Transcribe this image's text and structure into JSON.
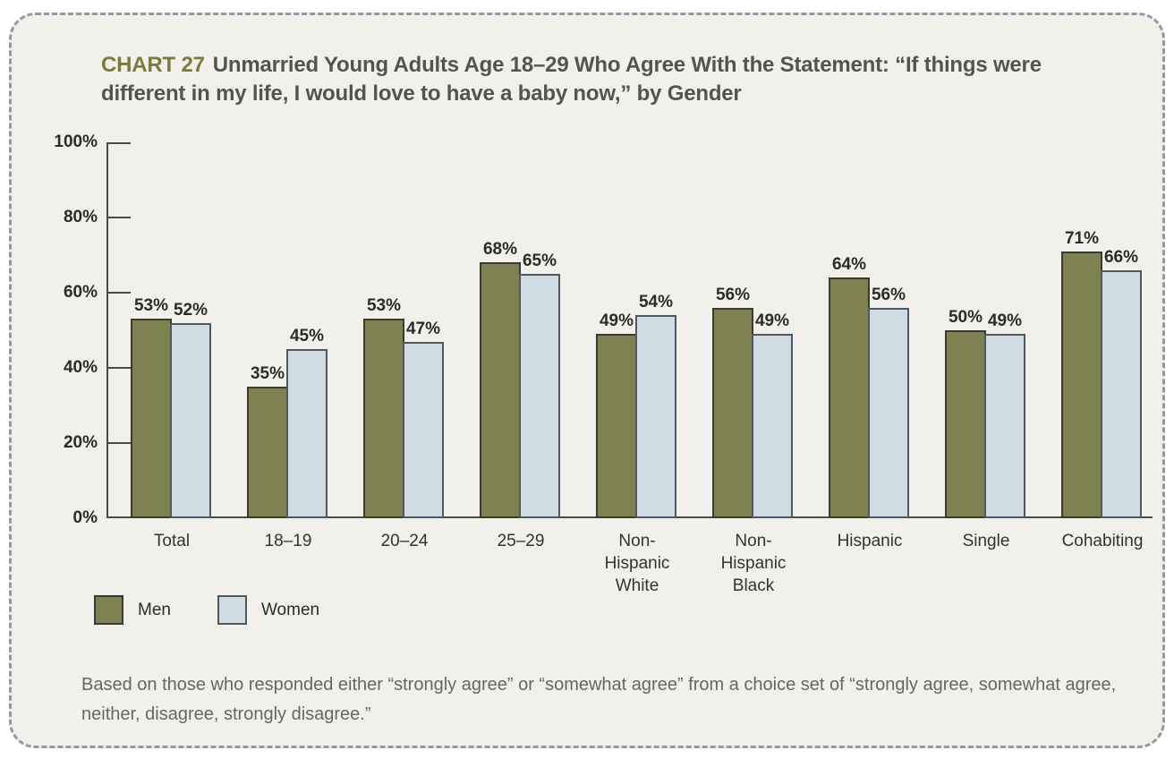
{
  "title": {
    "label": "CHART 27",
    "text": "Unmarried Young Adults Age 18–29 Who Agree With the Statement: “If things were different in my life, I would love to have a baby now,” by Gender"
  },
  "chart_data": {
    "type": "bar",
    "title": "CHART 27: Unmarried Young Adults Age 18–29 Who Agree With the Statement: “If things were different in my life, I would love to have a baby now,” by Gender",
    "categories": [
      "Total",
      "18–19",
      "20–24",
      "25–29",
      "Non-\nHispanic\nWhite",
      "Non-\nHispanic\nBlack",
      "Hispanic",
      "Single",
      "Cohabiting"
    ],
    "series": [
      {
        "name": "Men",
        "values": [
          53,
          35,
          53,
          68,
          49,
          56,
          64,
          50,
          71
        ],
        "fill": "#7e8251",
        "border": "#3b3b2d"
      },
      {
        "name": "Women",
        "values": [
          52,
          45,
          47,
          65,
          54,
          49,
          56,
          49,
          66
        ],
        "fill": "#cfdce3",
        "border": "#4e585e"
      }
    ],
    "xlabel": "",
    "ylabel": "",
    "ylim": [
      0,
      100
    ],
    "ytick_labels": [
      "100%",
      "80%",
      "60%",
      "40%",
      "20%",
      "0%"
    ],
    "value_suffix": "%",
    "grid": false,
    "legend_position": "bottom-left"
  },
  "footnote": {
    "text": "Based on those who responded either “strongly agree” or “somewhat agree” from a choice set of “strongly agree, somewhat agree, neither, disagree, strongly disagree.”"
  },
  "colors": {
    "panel_background": "#f1f0eb",
    "panel_border": "#8e9ba7",
    "axis": "#4b4a44",
    "chart_number": "#7b7b3a",
    "title_text": "#55544c"
  }
}
